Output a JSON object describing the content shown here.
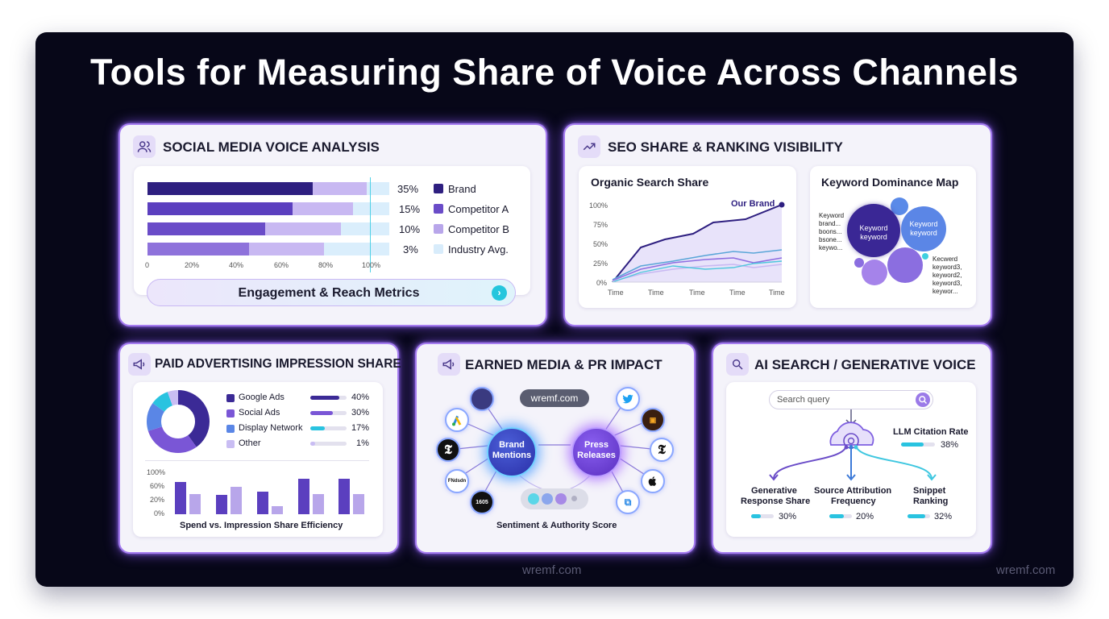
{
  "title": "Tools for Measuring Share of Voice Across Channels",
  "watermark": "wremf.com",
  "social": {
    "title": "SOCIAL MEDIA VOICE ANALYSIS",
    "icon": "users-icon",
    "axis_ticks": [
      "0",
      "20%",
      "40%",
      "60%",
      "80%",
      "100%"
    ],
    "rows": [
      {
        "pct": "35%",
        "label": "Brand",
        "value": 35,
        "color": "#2e1f80"
      },
      {
        "pct": "15%",
        "label": "Competitor A",
        "value": 15,
        "color": "#6a4cc8"
      },
      {
        "pct": "10%",
        "label": "Competitor B",
        "value": 10,
        "color": "#b8a6ea"
      },
      {
        "pct": "3%",
        "label": "Industry Avg.",
        "value": 3,
        "color": "#d8ecfb"
      }
    ],
    "button": "Engagement & Reach Metrics"
  },
  "seo": {
    "title": "SEO SHARE & RANKING VISIBILITY",
    "icon": "trending-up-icon",
    "organic_title": "Organic Search Share",
    "series_label": "Our Brand",
    "y_ticks": [
      "100%",
      "75%",
      "50%",
      "25%",
      "0%"
    ],
    "x_ticks": [
      "Time",
      "Time",
      "Time",
      "Time",
      "Time"
    ],
    "keyword_title": "Keyword Dominance Map",
    "bubble1": "Keyword keyword",
    "bubble2": "Keyword keyword",
    "left_list": [
      "Keyword",
      "brand...",
      "boons...",
      "bsone...",
      "keywo..."
    ],
    "right_list": [
      "Kecwerd",
      "keyword3,",
      "keyword2,",
      "keyword3,",
      "keywor..."
    ]
  },
  "paid": {
    "title": "PAID ADVERTISING IMPRESSION SHARE",
    "icon": "megaphone-icon",
    "legend": [
      {
        "label": "Google Ads",
        "pct": "40%",
        "value": 40,
        "color": "#3b2a96"
      },
      {
        "label": "Social Ads",
        "pct": "30%",
        "value": 30,
        "color": "#7a56d6"
      },
      {
        "label": "Display Network",
        "pct": "17%",
        "value": 17,
        "color": "#29c3e0"
      },
      {
        "label": "Other",
        "pct": "1%",
        "value": 1,
        "color": "#c9bdf3"
      }
    ],
    "y_ticks": [
      "100%",
      "60%",
      "20%",
      "0%"
    ],
    "bar_pairs": [
      [
        70,
        45
      ],
      [
        42,
        62
      ],
      [
        50,
        18
      ],
      [
        80,
        45
      ],
      [
        80,
        45
      ]
    ],
    "caption": "Spend vs. Impression Share Efficiency"
  },
  "earned": {
    "title": "EARNED MEDIA & PR IMPACT",
    "icon": "megaphone-icon",
    "pill": "wremf.com",
    "hub1": "Brand Mentions",
    "hub2": "Press Releases",
    "caption": "Sentiment & Authority Score"
  },
  "ai": {
    "title": "AI SEARCH / GENERATIVE VOICE",
    "icon": "search-icon",
    "search_placeholder": "Search query",
    "llm_label": "LLM Citation Rate",
    "llm_pct": "38%",
    "llm_value": 38,
    "metrics": [
      {
        "label1": "Generative",
        "label2": "Response Share",
        "pct": "30%",
        "value": 30
      },
      {
        "label1": "Source Attribution",
        "label2": "Frequency",
        "pct": "20%",
        "value": 20
      },
      {
        "label1": "Snippet",
        "label2": "Ranking",
        "pct": "32%",
        "value": 32
      }
    ]
  }
}
